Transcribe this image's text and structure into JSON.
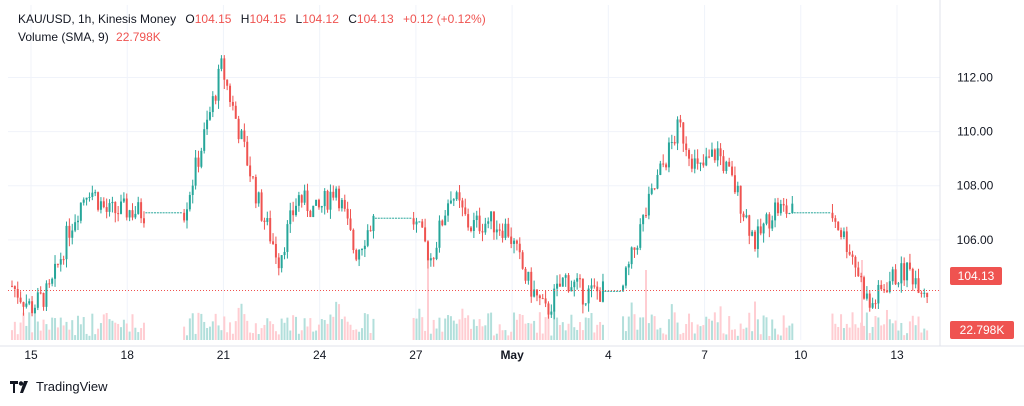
{
  "legend": {
    "symbol": "KAU/USD, 1h, Kinesis Money",
    "o_label": "O",
    "o_value": "104.15",
    "h_label": "H",
    "h_value": "104.15",
    "l_label": "L",
    "l_value": "104.12",
    "c_label": "C",
    "c_value": "104.13",
    "change": "+0.12 (+0.12%)",
    "volume_label": "Volume (SMA, 9)",
    "volume_value": "22.798K"
  },
  "brand": {
    "name": "TradingView",
    "icon": "tradingview-logo-icon"
  },
  "colors": {
    "up": "#26a69a",
    "down": "#ef5350",
    "up_vol": "#b2dfdb",
    "down_vol": "#ffcdd2",
    "grid": "#f0f3fa",
    "text": "#131722"
  },
  "chart_data": {
    "type": "candlestick",
    "title": "KAU/USD, 1h, Kinesis Money",
    "ylim": [
      102.3,
      113.2
    ],
    "y_ticks": [
      "112.00",
      "110.00",
      "108.00",
      "106.00"
    ],
    "x_ticks": [
      "15",
      "18",
      "21",
      "24",
      "27",
      "May",
      "4",
      "7",
      "10",
      "13"
    ],
    "last_price": "104.13",
    "last_volume": "22.798K",
    "grid": true,
    "legend_position": "top-left",
    "price_path": [
      [
        "15",
        104.3
      ],
      [
        "15",
        103.5
      ],
      [
        "16",
        104.1
      ],
      [
        "16",
        106.4
      ],
      [
        "17",
        108.0
      ],
      [
        "17",
        107.0
      ],
      [
        "18",
        107.1
      ],
      [
        "19",
        107.0
      ],
      [
        "20",
        107.0
      ],
      [
        "21",
        107.0
      ],
      [
        "21",
        109.6
      ],
      [
        "22",
        112.4
      ],
      [
        "22",
        109.8
      ],
      [
        "23",
        107.2
      ],
      [
        "23",
        105.3
      ],
      [
        "24",
        107.6
      ],
      [
        "24",
        107.0
      ],
      [
        "25",
        108.0
      ],
      [
        "25",
        105.5
      ],
      [
        "26",
        106.8
      ],
      [
        "27",
        106.8
      ],
      [
        "28",
        106.8
      ],
      [
        "28",
        105.3
      ],
      [
        "29",
        107.8
      ],
      [
        "29",
        106.5
      ],
      [
        "30",
        106.7
      ],
      [
        "30",
        106.4
      ],
      [
        "1",
        104.5
      ],
      [
        "1",
        103.3
      ],
      [
        "2",
        104.6
      ],
      [
        "3",
        104.0
      ],
      [
        "4",
        104.1
      ],
      [
        "5",
        104.1
      ],
      [
        "5",
        106.5
      ],
      [
        "6",
        108.5
      ],
      [
        "7",
        110.2
      ],
      [
        "7",
        108.5
      ],
      [
        "8",
        109.3
      ],
      [
        "9",
        107.8
      ],
      [
        "9",
        105.9
      ],
      [
        "10",
        107.2
      ],
      [
        "10",
        107.0
      ],
      [
        "11",
        107.0
      ],
      [
        "12",
        107.0
      ],
      [
        "12",
        105.6
      ],
      [
        "13",
        103.5
      ],
      [
        "13",
        104.5
      ],
      [
        "14",
        104.9
      ],
      [
        "14",
        104.13
      ]
    ]
  }
}
